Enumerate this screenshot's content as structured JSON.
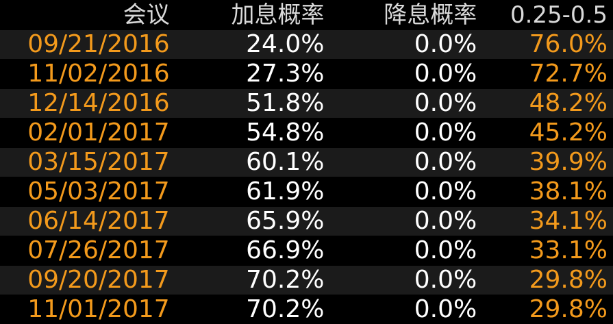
{
  "headers": [
    "会议",
    "加息概率",
    "降息概率",
    "0.25-0.5"
  ],
  "rows": [
    {
      "meeting": "09/21/2016",
      "hike": "24.0%",
      "cut": "0.0%",
      "range": "76.0%"
    },
    {
      "meeting": "11/02/2016",
      "hike": "27.3%",
      "cut": "0.0%",
      "range": "72.7%"
    },
    {
      "meeting": "12/14/2016",
      "hike": "51.8%",
      "cut": "0.0%",
      "range": "48.2%"
    },
    {
      "meeting": "02/01/2017",
      "hike": "54.8%",
      "cut": "0.0%",
      "range": "45.2%"
    },
    {
      "meeting": "03/15/2017",
      "hike": "60.1%",
      "cut": "0.0%",
      "range": "39.9%"
    },
    {
      "meeting": "05/03/2017",
      "hike": "61.9%",
      "cut": "0.0%",
      "range": "38.1%"
    },
    {
      "meeting": "06/14/2017",
      "hike": "65.9%",
      "cut": "0.0%",
      "range": "34.1%"
    },
    {
      "meeting": "07/26/2017",
      "hike": "66.9%",
      "cut": "0.0%",
      "range": "33.1%"
    },
    {
      "meeting": "09/20/2017",
      "hike": "70.2%",
      "cut": "0.0%",
      "range": "29.8%"
    },
    {
      "meeting": "11/01/2017",
      "hike": "70.2%",
      "cut": "0.0%",
      "range": "29.8%"
    }
  ],
  "colors": {
    "background": "#000000",
    "row_alt": "#1b1b1b",
    "header_text": "#d9d9d9",
    "date_text": "#f39a1c",
    "value_text": "#ffffff",
    "range_text": "#f39a1c"
  }
}
